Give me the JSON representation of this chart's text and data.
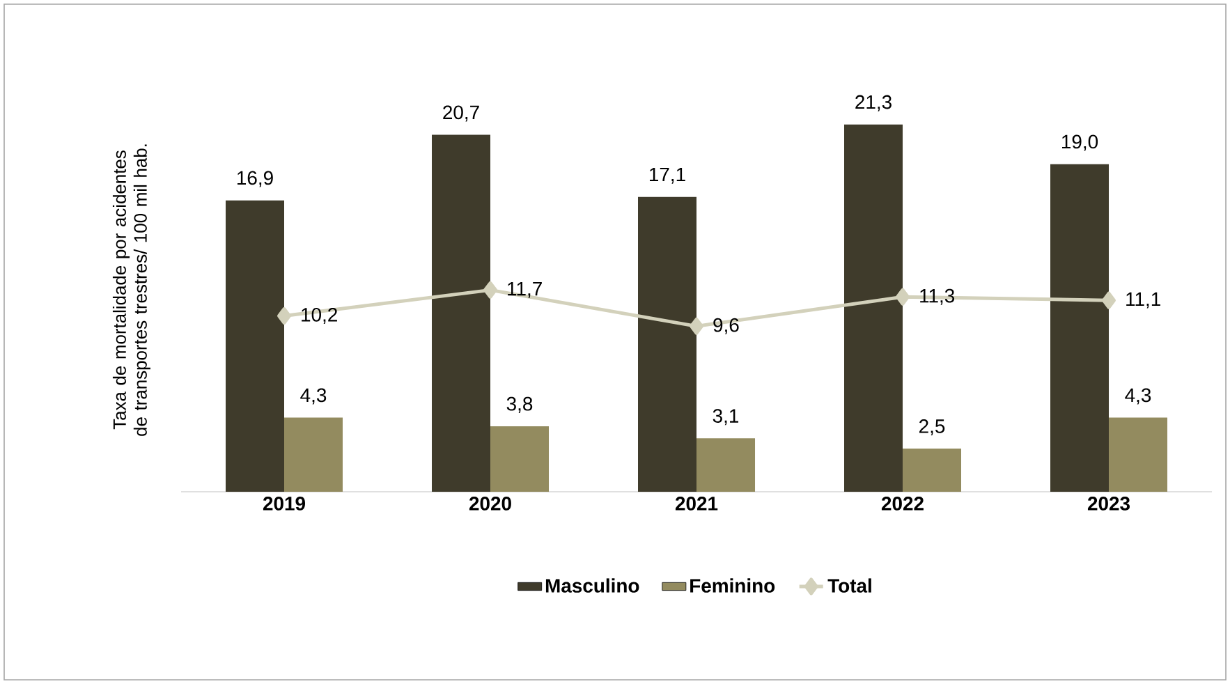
{
  "chart_data": {
    "type": "bar",
    "ylabel": "Taxa de mortalidade por acidentes de transportes trestres/ 100 mil hab.",
    "categories": [
      "2019",
      "2020",
      "2021",
      "2022",
      "2023"
    ],
    "series": [
      {
        "name": "Masculino",
        "color": "#3f3b2b",
        "values": [
          16.9,
          20.7,
          17.1,
          21.3,
          19.0
        ],
        "value_labels": [
          "16,9",
          "20,7",
          "17,1",
          "21,3",
          "19,0"
        ]
      },
      {
        "name": "Feminino",
        "color": "#938b5f",
        "values": [
          4.3,
          3.8,
          3.1,
          2.5,
          4.3
        ],
        "value_labels": [
          "4,3",
          "3,8",
          "3,1",
          "2,5",
          "4,3"
        ]
      },
      {
        "name": "Total",
        "type": "line",
        "color": "#d3d1bb",
        "marker": "diamond",
        "values": [
          10.2,
          11.7,
          9.6,
          11.3,
          11.1
        ],
        "value_labels": [
          "10,2",
          "11,7",
          "9,6",
          "11,3",
          "11,1"
        ]
      }
    ],
    "legend": "bottom"
  }
}
